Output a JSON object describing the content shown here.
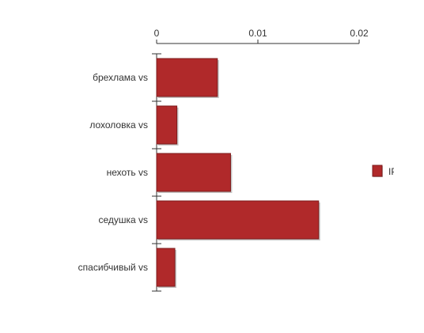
{
  "chart_data": {
    "type": "bar",
    "orientation": "horizontal",
    "categories": [
      "брехлама vs",
      "лохоловка vs",
      "нехоть vs",
      "седушка vs",
      "спасибчивый vs"
    ],
    "series": [
      {
        "name": "IP",
        "values": [
          0.006,
          0.002,
          0.0073,
          0.016,
          0.0018
        ]
      }
    ],
    "x_ticks": [
      "0",
      "0.01",
      "0.02"
    ],
    "xlim": [
      0,
      0.02
    ],
    "x_axis_position": "top",
    "grid": false,
    "legend_position": "right",
    "colors": {
      "bar": "#b0292a",
      "bar_edge": "#7d1c1c",
      "shadow": "#9a9a9a"
    }
  }
}
